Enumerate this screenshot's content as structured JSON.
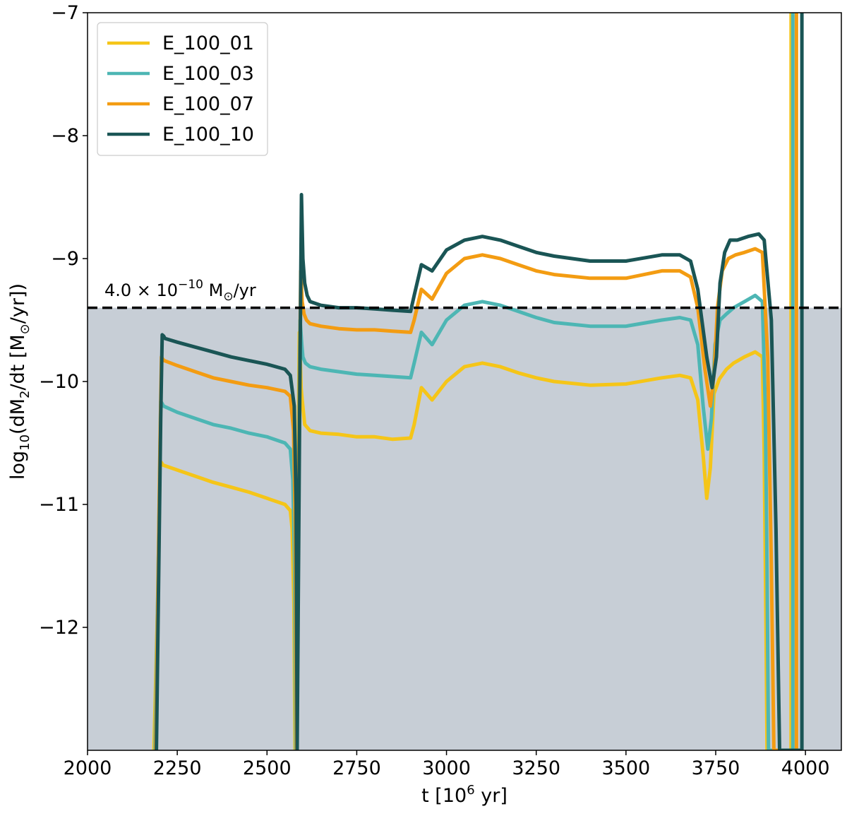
{
  "chart_data": {
    "type": "line",
    "xlabel_main": "t [10",
    "xlabel_sup": "6",
    "xlabel_end": " yr]",
    "ylabel_pre": "log",
    "ylabel_sub1": "10",
    "ylabel_mid": "(dM",
    "ylabel_sub2": "2",
    "ylabel_post": "/dt [M",
    "ylabel_sun": "⊙",
    "ylabel_end": "/yr])",
    "xlim": [
      2000,
      4100
    ],
    "ylim": [
      -13,
      -7
    ],
    "xticks": [
      2000,
      2250,
      2500,
      2750,
      3000,
      3250,
      3500,
      3750,
      4000
    ],
    "xtick_labels": [
      "2000",
      "2250",
      "2500",
      "2750",
      "3000",
      "3250",
      "3500",
      "3750",
      "4000"
    ],
    "yticks": [
      -12,
      -11,
      -10,
      -9,
      -8,
      -7
    ],
    "ytick_labels": [
      "−12",
      "−11",
      "−10",
      "−9",
      "−8",
      "−7"
    ],
    "threshold": {
      "value": -9.4,
      "label_coef": "4.0 × 10",
      "label_exp": "−10",
      "label_unit": " M",
      "label_sun": "⊙",
      "label_end": "/yr",
      "shade_color": "#c7ced6"
    },
    "legend_position": "upper-left",
    "series": [
      {
        "name": "E_100_01",
        "color": "#f5c518",
        "x": [
          2185,
          2198,
          2202,
          2206,
          2210,
          2250,
          2300,
          2350,
          2400,
          2450,
          2500,
          2550,
          2565,
          2570,
          2575,
          2578,
          2585,
          2590,
          2595,
          2598,
          2605,
          2620,
          2650,
          2700,
          2750,
          2800,
          2850,
          2900,
          2910,
          2930,
          2960,
          3000,
          3050,
          3100,
          3150,
          3200,
          3250,
          3300,
          3400,
          3500,
          3600,
          3650,
          3680,
          3700,
          3715,
          3725,
          3735,
          3745,
          3760,
          3780,
          3800,
          3830,
          3860,
          3880,
          3885,
          3890,
          3893,
          3960,
          3960
        ],
        "y": [
          -13,
          -11.5,
          -10.65,
          -10.66,
          -10.68,
          -10.72,
          -10.77,
          -10.82,
          -10.86,
          -10.9,
          -10.95,
          -11.0,
          -11.05,
          -11.2,
          -11.8,
          -13,
          -11.2,
          -9.6,
          -10.05,
          -10.15,
          -10.35,
          -10.4,
          -10.42,
          -10.43,
          -10.45,
          -10.45,
          -10.47,
          -10.46,
          -10.35,
          -10.05,
          -10.15,
          -10.0,
          -9.88,
          -9.85,
          -9.88,
          -9.93,
          -9.97,
          -10.0,
          -10.03,
          -10.02,
          -9.97,
          -9.95,
          -9.97,
          -10.15,
          -10.6,
          -10.95,
          -10.7,
          -10.1,
          -9.98,
          -9.9,
          -9.85,
          -9.8,
          -9.76,
          -9.8,
          -10.6,
          -12.0,
          -13,
          -13,
          -7
        ]
      },
      {
        "name": "E_100_03",
        "color": "#4db6b4",
        "x": [
          2188,
          2200,
          2204,
          2208,
          2212,
          2250,
          2300,
          2350,
          2400,
          2450,
          2500,
          2550,
          2565,
          2572,
          2577,
          2580,
          2587,
          2592,
          2597,
          2600,
          2607,
          2620,
          2650,
          2700,
          2750,
          2800,
          2850,
          2900,
          2910,
          2930,
          2960,
          3000,
          3050,
          3100,
          3150,
          3200,
          3250,
          3300,
          3400,
          3500,
          3600,
          3650,
          3680,
          3700,
          3715,
          3728,
          3738,
          3748,
          3762,
          3780,
          3800,
          3830,
          3860,
          3880,
          3888,
          3893,
          3897,
          3965,
          3965
        ],
        "y": [
          -13,
          -11.0,
          -10.16,
          -10.18,
          -10.2,
          -10.25,
          -10.3,
          -10.35,
          -10.38,
          -10.42,
          -10.45,
          -10.5,
          -10.55,
          -10.8,
          -11.5,
          -13,
          -10.8,
          -9.5,
          -9.7,
          -9.8,
          -9.85,
          -9.88,
          -9.9,
          -9.92,
          -9.94,
          -9.95,
          -9.96,
          -9.97,
          -9.85,
          -9.6,
          -9.7,
          -9.5,
          -9.38,
          -9.35,
          -9.38,
          -9.43,
          -9.48,
          -9.52,
          -9.55,
          -9.55,
          -9.5,
          -9.48,
          -9.5,
          -9.7,
          -10.2,
          -10.55,
          -10.3,
          -9.7,
          -9.5,
          -9.45,
          -9.4,
          -9.35,
          -9.3,
          -9.35,
          -10.2,
          -11.5,
          -13,
          -13,
          -7
        ]
      },
      {
        "name": "E_100_07",
        "color": "#f39c12",
        "x": [
          2190,
          2202,
          2206,
          2210,
          2214,
          2250,
          2300,
          2350,
          2400,
          2450,
          2500,
          2550,
          2565,
          2574,
          2579,
          2582,
          2589,
          2594,
          2598,
          2603,
          2610,
          2620,
          2650,
          2700,
          2750,
          2800,
          2850,
          2900,
          2910,
          2930,
          2960,
          3000,
          3050,
          3100,
          3150,
          3200,
          3250,
          3300,
          3400,
          3500,
          3600,
          3650,
          3680,
          3700,
          3720,
          3735,
          3745,
          3755,
          3768,
          3785,
          3805,
          3830,
          3860,
          3880,
          3895,
          3905,
          3912,
          3975,
          3975
        ],
        "y": [
          -13,
          -10.5,
          -9.8,
          -9.82,
          -9.83,
          -9.87,
          -9.92,
          -9.97,
          -10.0,
          -10.03,
          -10.05,
          -10.08,
          -10.12,
          -10.4,
          -11.2,
          -13,
          -10.5,
          -9.1,
          -9.35,
          -9.45,
          -9.5,
          -9.53,
          -9.55,
          -9.57,
          -9.58,
          -9.58,
          -9.59,
          -9.6,
          -9.5,
          -9.25,
          -9.33,
          -9.12,
          -9.0,
          -8.97,
          -9.0,
          -9.05,
          -9.1,
          -9.13,
          -9.16,
          -9.16,
          -9.1,
          -9.1,
          -9.15,
          -9.4,
          -9.9,
          -10.2,
          -9.95,
          -9.4,
          -9.1,
          -9.0,
          -8.97,
          -8.95,
          -8.92,
          -8.95,
          -9.8,
          -11.5,
          -13,
          -13,
          -7
        ]
      },
      {
        "name": "E_100_10",
        "color": "#1a5555",
        "x": [
          2192,
          2204,
          2208,
          2212,
          2216,
          2250,
          2300,
          2350,
          2400,
          2450,
          2500,
          2550,
          2565,
          2576,
          2581,
          2584,
          2591,
          2596,
          2600,
          2605,
          2612,
          2620,
          2650,
          2700,
          2750,
          2800,
          2850,
          2900,
          2910,
          2930,
          2960,
          3000,
          3050,
          3100,
          3150,
          3200,
          3250,
          3300,
          3400,
          3500,
          3600,
          3650,
          3680,
          3700,
          3725,
          3740,
          3752,
          3762,
          3775,
          3790,
          3810,
          3840,
          3870,
          3885,
          3905,
          3918,
          3928,
          3990,
          3990
        ],
        "y": [
          -13,
          -10.3,
          -9.62,
          -9.63,
          -9.65,
          -9.68,
          -9.72,
          -9.76,
          -9.8,
          -9.83,
          -9.86,
          -9.9,
          -9.95,
          -10.2,
          -11.0,
          -13,
          -10.2,
          -8.48,
          -9.0,
          -9.2,
          -9.3,
          -9.35,
          -9.38,
          -9.4,
          -9.4,
          -9.41,
          -9.42,
          -9.43,
          -9.3,
          -9.05,
          -9.1,
          -8.93,
          -8.85,
          -8.82,
          -8.85,
          -8.9,
          -8.95,
          -8.98,
          -9.02,
          -9.02,
          -8.97,
          -8.97,
          -9.02,
          -9.25,
          -9.8,
          -10.05,
          -9.8,
          -9.2,
          -8.95,
          -8.85,
          -8.85,
          -8.82,
          -8.8,
          -8.85,
          -9.5,
          -11.2,
          -13,
          -13,
          -7
        ]
      }
    ]
  }
}
